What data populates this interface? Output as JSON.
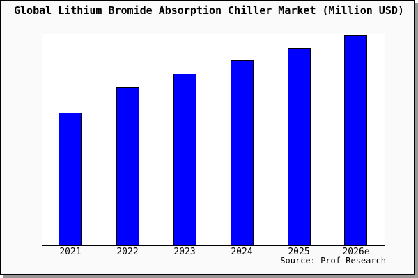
{
  "chart_data": {
    "type": "bar",
    "title": "Global Lithium Bromide Absorption Chiller Market (Million USD)",
    "categories": [
      "2021",
      "2022",
      "2023",
      "2024",
      "2025",
      "2026e"
    ],
    "values": [
      0.631,
      0.754,
      0.817,
      0.88,
      0.94,
      1.0
    ],
    "values_note": "y-axis is unlabeled in the image; values are bar heights relative to the tallest bar (2026e = 1.0)",
    "xlabel": "",
    "ylabel": "",
    "grid": false,
    "legend": false,
    "y_axis_ticks": [],
    "bar_color": "#0000ff",
    "bar_border_color": "#000000",
    "axis_color": "#000000",
    "plot_background_color": "#ffffff",
    "canvas_background_color": "#fafafa",
    "frame_border_color": "#000000",
    "frame_shadow_color": "#979797"
  },
  "source": {
    "label": "Source: Prof Research"
  }
}
